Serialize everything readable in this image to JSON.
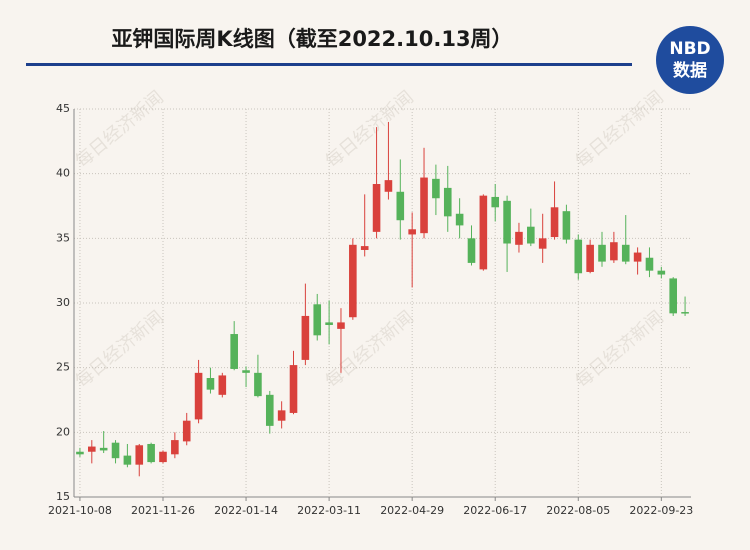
{
  "chart_data": {
    "type": "candlestick",
    "title": "亚钾国际周K线图（截至2022.10.13周）",
    "logo": {
      "top": "NBD",
      "bottom": "数据"
    },
    "watermark": "每日经济新闻",
    "categories": [
      "2021-10-08",
      null,
      null,
      null,
      null,
      null,
      null,
      "2021-11-26",
      null,
      null,
      null,
      null,
      null,
      null,
      "2022-01-14",
      null,
      null,
      null,
      null,
      null,
      null,
      "2022-03-11",
      null,
      null,
      null,
      null,
      null,
      null,
      "2022-04-29",
      null,
      null,
      null,
      null,
      null,
      null,
      "2022-06-17",
      null,
      null,
      null,
      null,
      null,
      null,
      "2022-08-05",
      null,
      null,
      null,
      null,
      null,
      null,
      "2022-09-23",
      null,
      null
    ],
    "open": [
      18.5,
      18.5,
      18.8,
      19.2,
      18.2,
      17.5,
      19.1,
      17.7,
      18.3,
      19.3,
      21.0,
      24.2,
      22.9,
      27.6,
      24.8,
      24.6,
      22.9,
      20.9,
      21.5,
      25.6,
      29.9,
      28.5,
      28.0,
      28.9,
      34.1,
      35.5,
      38.6,
      38.6,
      35.3,
      35.4,
      39.6,
      38.9,
      36.9,
      35.0,
      32.6,
      38.2,
      37.9,
      34.5,
      35.9,
      34.2,
      35.1,
      37.1,
      34.9,
      32.4,
      34.5,
      33.3,
      34.5,
      33.2,
      33.5,
      32.5,
      31.9,
      29.3
    ],
    "high": [
      18.8,
      19.4,
      20.1,
      19.4,
      19.1,
      19.1,
      19.2,
      18.6,
      20.0,
      21.5,
      25.6,
      25.0,
      24.6,
      28.6,
      25.1,
      26.0,
      23.2,
      22.4,
      26.3,
      31.5,
      30.7,
      30.2,
      29.6,
      35.0,
      38.4,
      43.6,
      44.0,
      41.1,
      37.0,
      42.0,
      40.7,
      40.6,
      38.1,
      36.0,
      38.4,
      39.2,
      38.3,
      36.2,
      37.3,
      36.9,
      39.4,
      37.6,
      35.3,
      34.9,
      35.5,
      35.5,
      36.8,
      34.3,
      34.3,
      32.8,
      32.0,
      30.5
    ],
    "low": [
      18.1,
      17.6,
      18.4,
      17.6,
      17.3,
      16.6,
      17.6,
      17.6,
      18.0,
      19.0,
      20.7,
      23.0,
      22.7,
      24.8,
      23.5,
      22.7,
      19.9,
      20.3,
      21.4,
      25.2,
      27.1,
      26.8,
      24.6,
      28.7,
      33.6,
      35.0,
      38.0,
      34.9,
      31.2,
      35.0,
      36.8,
      35.5,
      35.0,
      32.9,
      32.5,
      36.3,
      32.4,
      33.9,
      34.4,
      33.1,
      34.9,
      34.6,
      31.8,
      32.3,
      32.8,
      33.1,
      33.0,
      32.2,
      32.0,
      31.9,
      29.0,
      29.0
    ],
    "close": [
      18.3,
      18.9,
      18.6,
      18.0,
      17.5,
      19.0,
      17.7,
      18.5,
      19.4,
      20.9,
      24.6,
      23.3,
      24.4,
      24.9,
      24.6,
      22.8,
      20.5,
      21.7,
      25.2,
      29.0,
      27.5,
      28.3,
      28.5,
      34.5,
      34.4,
      39.2,
      39.5,
      36.4,
      35.7,
      39.7,
      38.1,
      36.7,
      36.0,
      33.1,
      38.3,
      37.4,
      34.6,
      35.5,
      34.6,
      35.0,
      37.4,
      34.9,
      32.3,
      34.5,
      33.2,
      34.7,
      33.2,
      33.9,
      32.5,
      32.2,
      29.2,
      29.2
    ],
    "up_color": "#d9413c",
    "down_color": "#55b25a",
    "ylim": [
      15,
      45
    ],
    "yticks": [
      15,
      20,
      25,
      30,
      35,
      40,
      45
    ],
    "grid": true
  }
}
